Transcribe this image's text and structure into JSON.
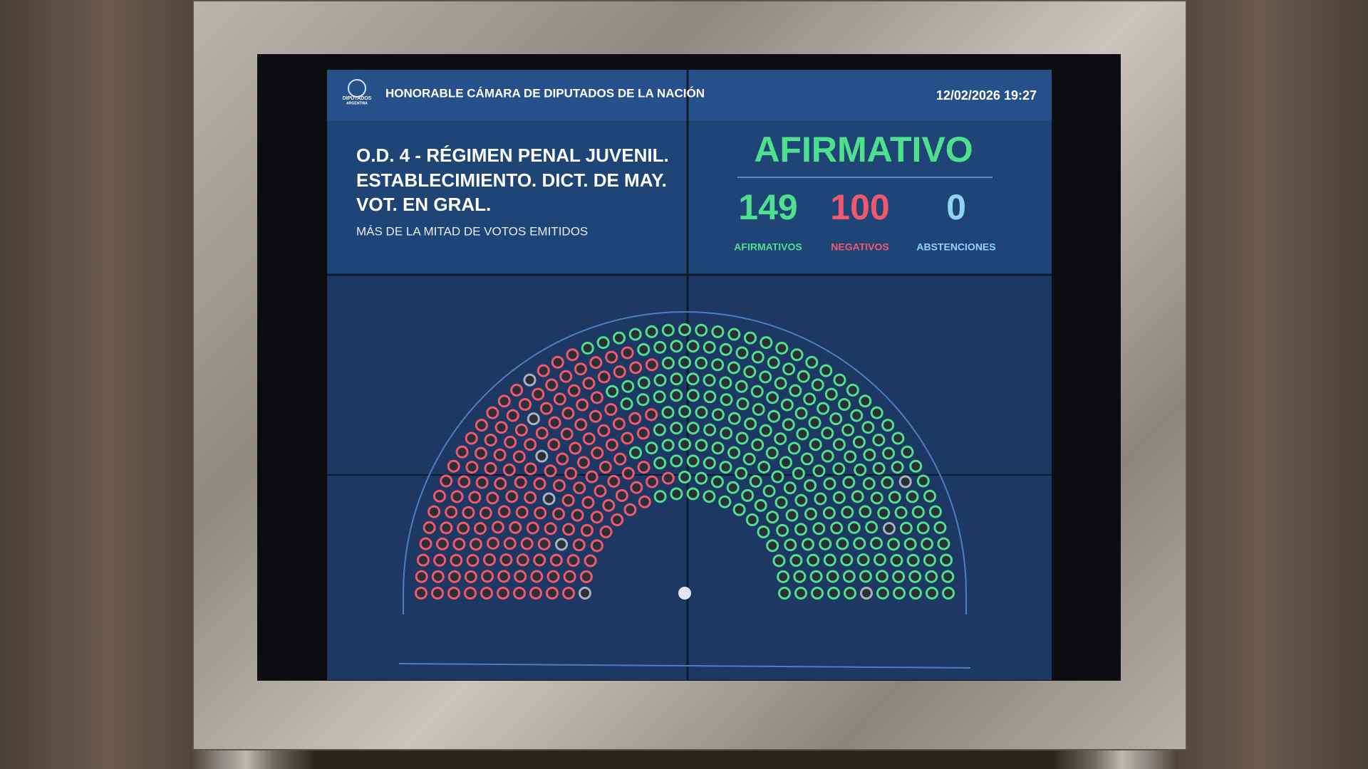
{
  "header": {
    "logo_text": "DIPUTADOS",
    "logo_subtext": "ARGENTINA",
    "title": "HONORABLE CÁMARA DE DIPUTADOS DE LA NACIÓN",
    "datetime": "12/02/2026 19:27"
  },
  "motion": {
    "lines": [
      "O.D. 4 - RÉGIMEN PENAL JUVENIL.",
      "ESTABLECIMIENTO. DICT. DE MAY.",
      "VOT. EN GRAL."
    ],
    "majority": "MÁS DE LA MITAD DE VOTOS EMITIDOS"
  },
  "result": {
    "outcome": "AFIRMATIVO",
    "tallies": [
      {
        "count": 149,
        "label": "AFIRMATIVOS"
      },
      {
        "count": 100,
        "label": "NEGATIVOS"
      },
      {
        "count": 0,
        "label": "ABSTENCIONES"
      }
    ]
  }
}
